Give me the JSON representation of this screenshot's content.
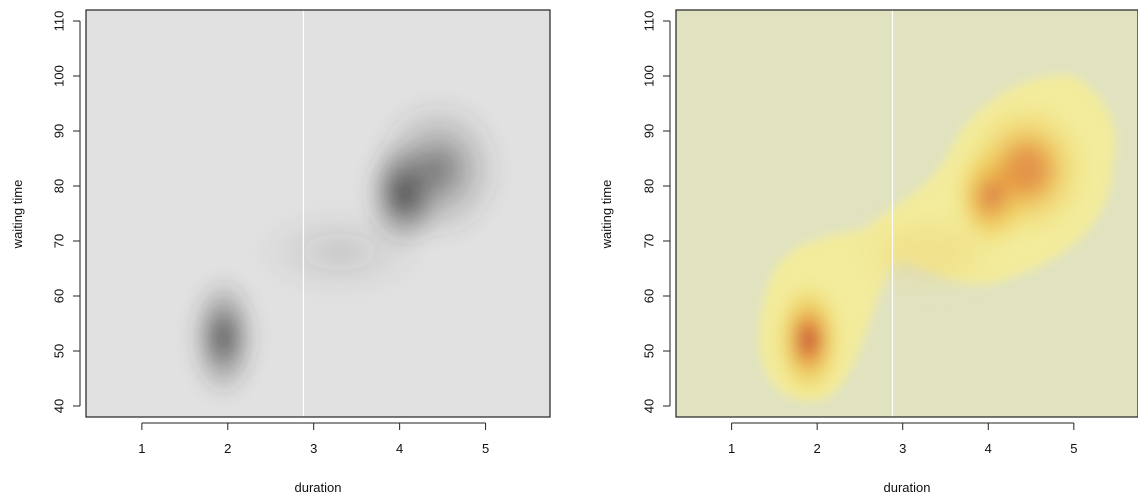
{
  "chart_data": [
    {
      "type": "heatmap",
      "title": "",
      "xlabel": "duration",
      "ylabel": "waiting time",
      "xlim": [
        0.35,
        5.75
      ],
      "ylim": [
        38,
        112
      ],
      "xticks": [
        1,
        2,
        3,
        4,
        5
      ],
      "yticks": [
        40,
        50,
        60,
        70,
        80,
        90,
        100,
        110
      ],
      "vertical_reference_line_x": 2.88,
      "grid": false,
      "legend": "none",
      "colors": {
        "background": "#e1e1e1",
        "low": "#e1e1e1",
        "high": "#3a3a3a",
        "reference_line": "#ffffff"
      },
      "density_peaks": [
        {
          "x": 1.95,
          "y": 52.5,
          "relative_density": 0.9
        },
        {
          "x": 4.05,
          "y": 78.5,
          "relative_density": 1.0
        },
        {
          "x": 4.45,
          "y": 83.0,
          "relative_density": 0.55
        },
        {
          "x": 3.3,
          "y": 68.0,
          "relative_density": 0.12
        }
      ]
    },
    {
      "type": "heatmap",
      "title": "",
      "xlabel": "duration",
      "ylabel": "waiting time",
      "xlim": [
        0.35,
        5.75
      ],
      "ylim": [
        38,
        112
      ],
      "xticks": [
        1,
        2,
        3,
        4,
        5
      ],
      "yticks": [
        40,
        50,
        60,
        70,
        80,
        90,
        100,
        110
      ],
      "vertical_reference_line_x": 2.88,
      "grid": false,
      "legend": "none",
      "colors": {
        "background": "#e1e3c0",
        "low": "#f3ec9a",
        "mid": "#e9a23c",
        "high": "#b2063d",
        "reference_line": "#ffffff"
      },
      "density_peaks": [
        {
          "x": 1.9,
          "y": 52.0,
          "relative_density": 0.85
        },
        {
          "x": 4.05,
          "y": 78.5,
          "relative_density": 1.0
        },
        {
          "x": 4.45,
          "y": 83.0,
          "relative_density": 0.55
        },
        {
          "x": 3.3,
          "y": 68.0,
          "relative_density": 0.12
        }
      ]
    }
  ]
}
